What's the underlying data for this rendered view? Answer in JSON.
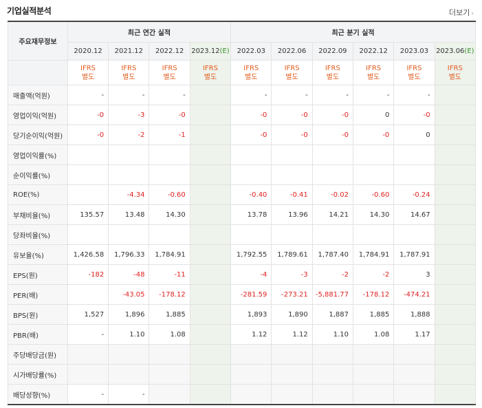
{
  "title": "기업실적분석",
  "more": "더보기",
  "header": {
    "row_label": "주요재무정보",
    "annual_group": "최근 연간 실적",
    "quarter_group": "최근 분기 실적",
    "annual_periods": [
      "2020.12",
      "2021.12",
      "2022.12",
      "2023.12(E)"
    ],
    "quarter_periods": [
      "2022.03",
      "2022.06",
      "2022.09",
      "2022.12",
      "2023.03",
      "2023.06(E)"
    ],
    "ifrs_top": "IFRS",
    "ifrs_bottom": "별도"
  },
  "rows": [
    {
      "label": "매출액(억원)",
      "annual": [
        "-",
        "-",
        "-",
        ""
      ],
      "quarter": [
        "-",
        "-",
        "-",
        "-",
        "-",
        ""
      ]
    },
    {
      "label": "영업이익(억원)",
      "annual": [
        "-0",
        "-3",
        "-0",
        ""
      ],
      "quarter": [
        "-0",
        "-0",
        "-0",
        "0",
        "-0",
        ""
      ]
    },
    {
      "label": "당기순이익(억원)",
      "annual": [
        "-0",
        "-2",
        "-1",
        ""
      ],
      "quarter": [
        "-0",
        "-0",
        "-0",
        "-0",
        "0",
        ""
      ]
    },
    {
      "label": "영업이익률(%)",
      "annual": [
        "",
        "",
        "",
        ""
      ],
      "quarter": [
        "",
        "",
        "",
        "",
        "",
        ""
      ]
    },
    {
      "label": "순이익률(%)",
      "annual": [
        "",
        "",
        "",
        ""
      ],
      "quarter": [
        "",
        "",
        "",
        "",
        "",
        ""
      ]
    },
    {
      "label": "ROE(%)",
      "annual": [
        "",
        "-4.34",
        "-0.60",
        ""
      ],
      "quarter": [
        "-0.40",
        "-0.41",
        "-0.02",
        "-0.60",
        "-0.24",
        ""
      ]
    },
    {
      "label": "부채비율(%)",
      "annual": [
        "135.57",
        "13.48",
        "14.30",
        ""
      ],
      "quarter": [
        "13.78",
        "13.96",
        "14.21",
        "14.30",
        "14.67",
        ""
      ]
    },
    {
      "label": "당좌비율(%)",
      "annual": [
        "",
        "",
        "",
        ""
      ],
      "quarter": [
        "",
        "",
        "",
        "",
        "",
        ""
      ]
    },
    {
      "label": "유보율(%)",
      "annual": [
        "1,426.58",
        "1,796.33",
        "1,784.91",
        ""
      ],
      "quarter": [
        "1,792.55",
        "1,789.61",
        "1,787.40",
        "1,784.91",
        "1,787.91",
        ""
      ]
    },
    {
      "label": "EPS(원)",
      "annual": [
        "-182",
        "-48",
        "-11",
        ""
      ],
      "quarter": [
        "-4",
        "-3",
        "-2",
        "-2",
        "3",
        ""
      ]
    },
    {
      "label": "PER(배)",
      "annual": [
        "",
        "-43.05",
        "-178.12",
        ""
      ],
      "quarter": [
        "-281.59",
        "-273.21",
        "-5,881.77",
        "-178.12",
        "-474.21",
        ""
      ]
    },
    {
      "label": "BPS(원)",
      "annual": [
        "1,527",
        "1,896",
        "1,885",
        ""
      ],
      "quarter": [
        "1,893",
        "1,890",
        "1,887",
        "1,885",
        "1,888",
        ""
      ]
    },
    {
      "label": "PBR(배)",
      "annual": [
        "-",
        "1.10",
        "1.08",
        ""
      ],
      "quarter": [
        "1.12",
        "1.12",
        "1.10",
        "1.08",
        "1.17",
        ""
      ]
    },
    {
      "label": "주당배당금(원)",
      "annual": [
        "",
        "",
        "",
        ""
      ],
      "quarter": [
        "",
        "",
        "",
        "",
        "",
        ""
      ]
    },
    {
      "label": "시가배당률(%)",
      "annual": [
        "",
        "",
        "",
        ""
      ],
      "quarter": [
        "",
        "",
        "",
        "",
        "",
        ""
      ]
    },
    {
      "label": "배당성향(%)",
      "annual": [
        "-",
        "-",
        "",
        ""
      ],
      "quarter": [
        "",
        "",
        "",
        "",
        "",
        ""
      ]
    }
  ],
  "colors": {
    "negative": "#e02020",
    "ifrs": "#e25b1c",
    "estimate_bg": "#eef3ec",
    "estimate_mark": "#3a8f2a"
  }
}
